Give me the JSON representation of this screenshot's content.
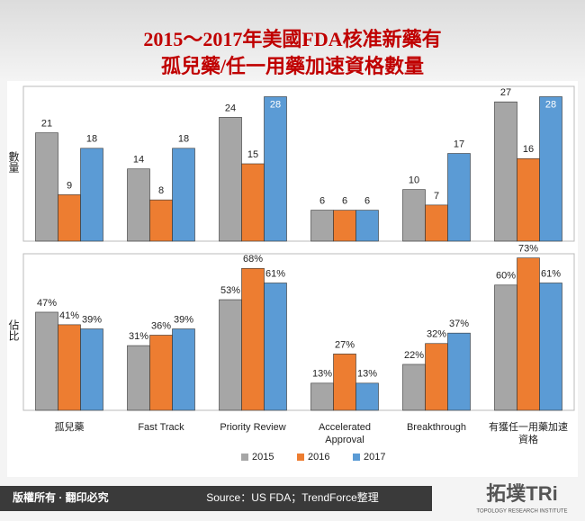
{
  "header": {
    "title_lines": [
      "2015～2017年美國FDA核准新藥有",
      "孤兒藥/任一用藥加速資格數量"
    ]
  },
  "chart_data": [
    {
      "type": "bar",
      "ylabel": "數量",
      "ylim": [
        0,
        30
      ],
      "series": [
        {
          "color": "#a6a6a6",
          "values": [
            21,
            14,
            24,
            6,
            10,
            27
          ]
        },
        {
          "color": "#ed7d31",
          "values": [
            9,
            8,
            15,
            6,
            7,
            16
          ]
        },
        {
          "color": "#5b9bd5",
          "values": [
            18,
            18,
            28,
            6,
            17,
            28
          ]
        }
      ]
    },
    {
      "type": "bar",
      "ylabel": "佔比",
      "ylim": [
        0,
        75
      ],
      "categories": [
        "孤兒藥",
        "Fast Track",
        "Priority Review",
        "Accelerated Approval",
        "Breakthrough",
        "有獲任一用藥加速資格"
      ],
      "legend": "bottom",
      "series": [
        {
          "name": "2015",
          "color": "#a6a6a6",
          "values": [
            47,
            31,
            53,
            13,
            22,
            60
          ],
          "value_labels": [
            "47%",
            "31%",
            "53%",
            "13%",
            "22%",
            "60%"
          ]
        },
        {
          "name": "2016",
          "color": "#ed7d31",
          "values": [
            41,
            36,
            68,
            27,
            32,
            73
          ],
          "value_labels": [
            "41%",
            "36%",
            "68%",
            "27%",
            "32%",
            "73%"
          ]
        },
        {
          "name": "2017",
          "color": "#5b9bd5",
          "values": [
            39,
            39,
            61,
            13,
            37,
            61
          ],
          "value_labels": [
            "39%",
            "39%",
            "61%",
            "13%",
            "37%",
            "61%"
          ]
        }
      ]
    }
  ],
  "footer": {
    "copyright": "版權所有 · 翻印必究",
    "source": "Source：US FDA；TrendForce整理",
    "logo": "拓墣TRi",
    "logo_sub": "TOPOLOGY RESEARCH INSTITUTE"
  }
}
